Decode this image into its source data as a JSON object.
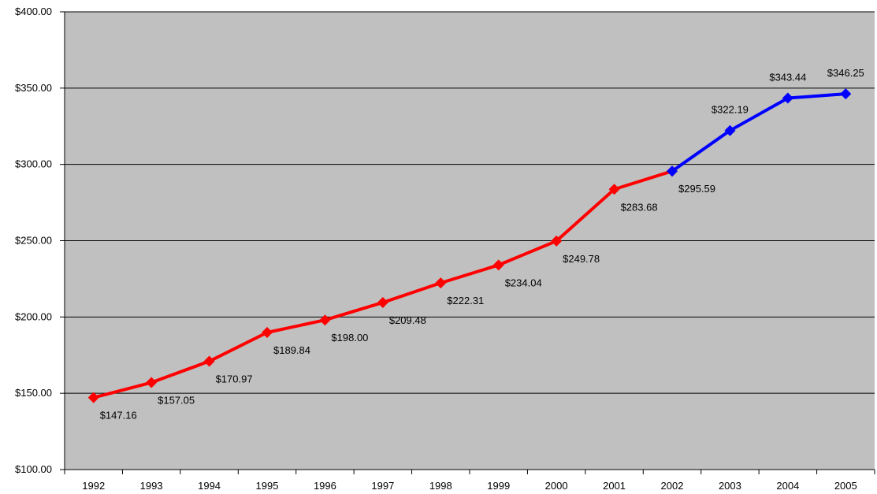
{
  "chart_data": {
    "type": "line",
    "title": "",
    "xlabel": "",
    "ylabel": "",
    "categories": [
      "1992",
      "1993",
      "1994",
      "1995",
      "1996",
      "1997",
      "1998",
      "1999",
      "2000",
      "2001",
      "2002",
      "2003",
      "2004",
      "2005"
    ],
    "series": [
      {
        "values": [
          147.16,
          157.05,
          170.97,
          189.84,
          198.0,
          209.48,
          222.31,
          234.04,
          249.78,
          283.68,
          295.59,
          null,
          null,
          null
        ],
        "color": "#ff0000",
        "marker": "diamond"
      },
      {
        "values": [
          null,
          null,
          null,
          null,
          null,
          null,
          null,
          null,
          null,
          null,
          295.59,
          322.19,
          343.44,
          346.25
        ],
        "color": "#0000ff",
        "marker": "diamond"
      }
    ],
    "data_labels": [
      "$147.16",
      "$157.05",
      "$170.97",
      "$189.84",
      "$198.00",
      "$209.48",
      "$222.31",
      "$234.04",
      "$249.78",
      "$283.68",
      "$295.59",
      "$322.19",
      "$343.44",
      "$346.25"
    ],
    "ylim": [
      100,
      400
    ],
    "yticks": [
      100,
      150,
      200,
      250,
      300,
      350,
      400
    ],
    "ytick_labels": [
      "$100.00",
      "$150.00",
      "$200.00",
      "$250.00",
      "$300.00",
      "$350.00",
      "$400.00"
    ],
    "grid": true,
    "plot_background": "#c0c0c0",
    "gridline_color": "#000000"
  }
}
